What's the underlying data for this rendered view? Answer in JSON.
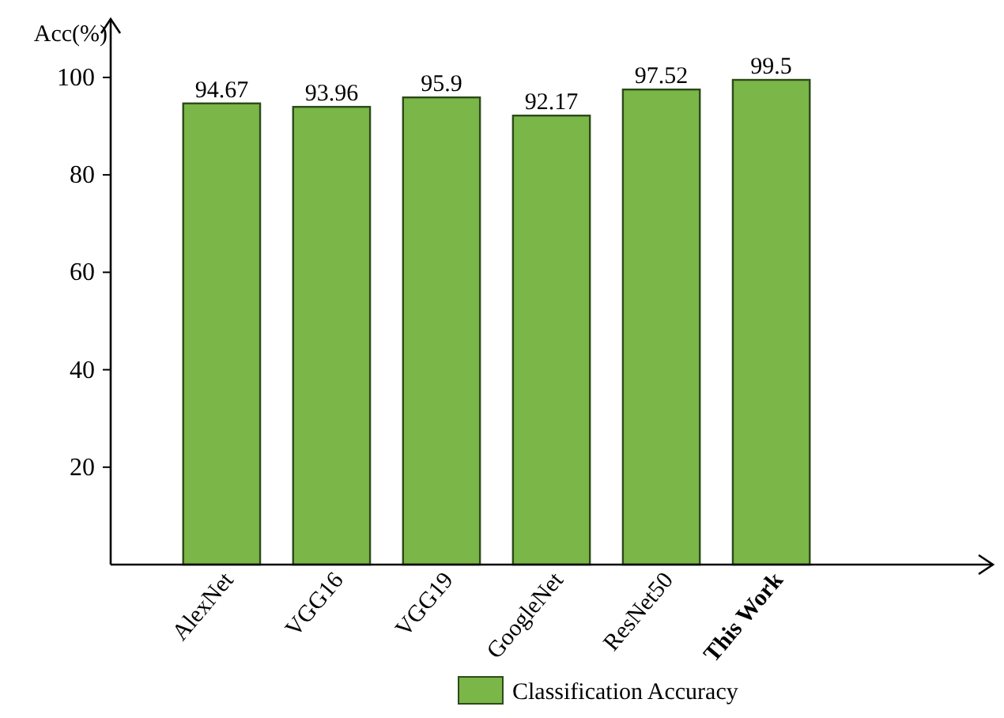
{
  "chart_data": {
    "type": "bar",
    "ylabel": "Acc(%)",
    "categories": [
      "AlexNet",
      "VGG16",
      "VGG19",
      "GoogleNet",
      "ResNet50",
      "This Work"
    ],
    "series": [
      {
        "name": "Classification Accuracy",
        "color": "#7ab648",
        "values": [
          94.67,
          93.96,
          95.9,
          92.17,
          97.52,
          99.5
        ]
      }
    ],
    "ylim": [
      0,
      112
    ],
    "yticks": [
      20,
      40,
      60,
      80,
      100
    ],
    "data_labels": true,
    "legend": "bottom",
    "grid": false
  }
}
